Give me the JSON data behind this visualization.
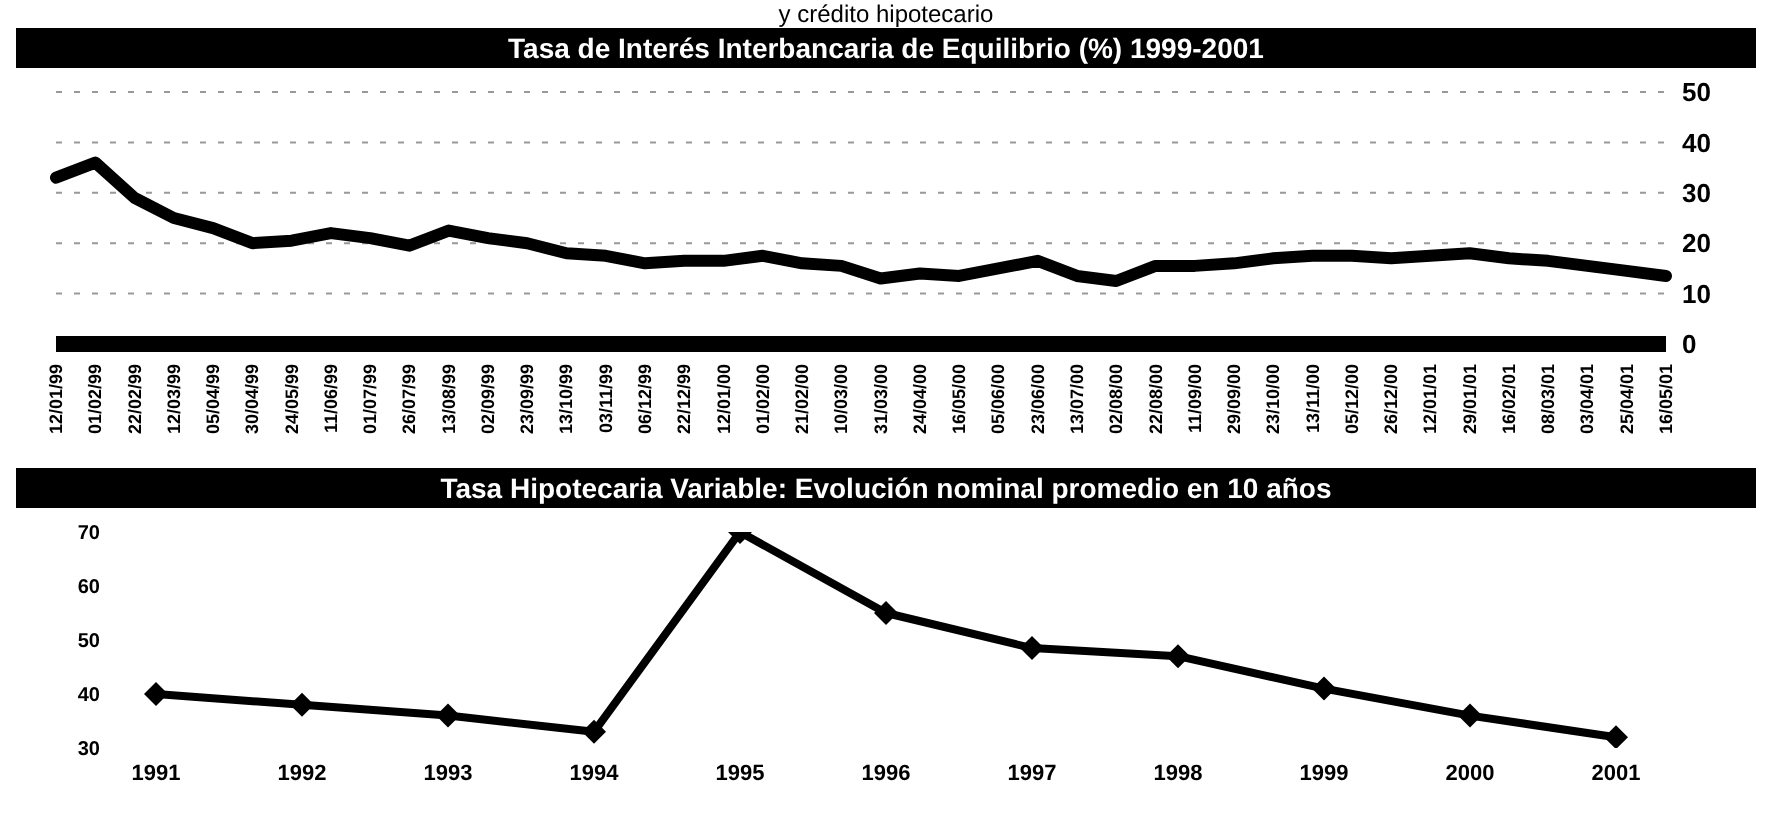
{
  "chart_data": [
    {
      "type": "line",
      "title": "Tasa de Interés Interbancaria de Equilibrio (%) 1999-2001",
      "annotations": [
        "y crédito hipotecario"
      ],
      "categories": [
        "12/01/99",
        "01/02/99",
        "22/02/99",
        "12/03/99",
        "05/04/99",
        "30/04/99",
        "24/05/99",
        "11/06/99",
        "01/07/99",
        "26/07/99",
        "13/08/99",
        "02/09/99",
        "23/09/99",
        "13/10/99",
        "03/11/99",
        "06/12/99",
        "22/12/99",
        "12/01/00",
        "01/02/00",
        "21/02/00",
        "10/03/00",
        "31/03/00",
        "24/04/00",
        "16/05/00",
        "05/06/00",
        "23/06/00",
        "13/07/00",
        "02/08/00",
        "22/08/00",
        "11/09/00",
        "29/09/00",
        "23/10/00",
        "13/11/00",
        "05/12/00",
        "26/12/00",
        "12/01/01",
        "29/01/01",
        "16/02/01",
        "08/03/01",
        "03/04/01",
        "25/04/01",
        "16/05/01"
      ],
      "series": [
        {
          "color": "#000000",
          "values": [
            33,
            36,
            29,
            25,
            23,
            20,
            20.5,
            22,
            21,
            19.5,
            22.5,
            21,
            20,
            18,
            17.5,
            16,
            16.5,
            16.5,
            17.5,
            16,
            15.5,
            13,
            14,
            13.5,
            15,
            16.5,
            13.5,
            12.5,
            15.5,
            15.5,
            16,
            17,
            17.5,
            17.5,
            17,
            17.5,
            18,
            17,
            16.5,
            15.5,
            14.5,
            13.5
          ]
        }
      ],
      "ylim": [
        0,
        50
      ],
      "yticks": [
        0,
        10,
        20,
        30,
        40,
        50
      ],
      "grid": "y",
      "marker": "none",
      "line_style": "solid"
    },
    {
      "type": "line",
      "title": "Tasa Hipotecaria Variable: Evolución nominal promedio en 10 años",
      "categories": [
        "1991",
        "1992",
        "1993",
        "1994",
        "1995",
        "1996",
        "1997",
        "1998",
        "1999",
        "2000",
        "2001"
      ],
      "series": [
        {
          "color": "#000000",
          "values": [
            40,
            38,
            36,
            33,
            70,
            55,
            48.5,
            47,
            41,
            36,
            32
          ]
        }
      ],
      "ylim": [
        30,
        70
      ],
      "yticks": [
        30,
        40,
        50,
        60,
        70
      ],
      "grid": false,
      "marker": "diamond",
      "line_style": "solid"
    }
  ]
}
